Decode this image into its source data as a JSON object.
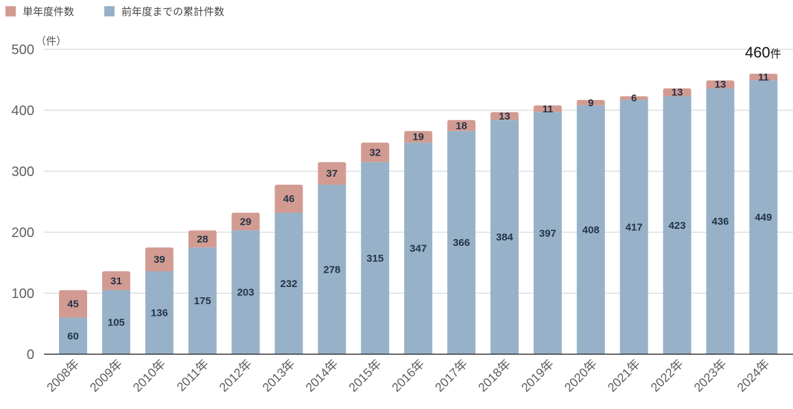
{
  "chart_data": {
    "type": "bar",
    "stacked": true,
    "unit_label": "（件）",
    "legend_position": "top-left",
    "grid": true,
    "ylim": [
      0,
      500
    ],
    "yticks": [
      "0",
      "100",
      "200",
      "300",
      "400",
      "500"
    ],
    "categories": [
      "2008年",
      "2009年",
      "2010年",
      "2011年",
      "2012年",
      "2013年",
      "2014年",
      "2015年",
      "2016年",
      "2017年",
      "2018年",
      "2019年",
      "2020年",
      "2021年",
      "2022年",
      "2023年",
      "2024年"
    ],
    "series": [
      {
        "name": "前年度までの累計件数",
        "color": "#97b1c8",
        "values": [
          60,
          105,
          136,
          175,
          203,
          232,
          278,
          315,
          347,
          366,
          384,
          397,
          408,
          417,
          423,
          436,
          449
        ]
      },
      {
        "name": "単年度件数",
        "color": "#d29b92",
        "values": [
          45,
          31,
          39,
          28,
          29,
          46,
          37,
          32,
          19,
          18,
          13,
          11,
          9,
          6,
          13,
          13,
          11
        ]
      }
    ],
    "legend": [
      "単年度件数",
      "前年度までの累計件数"
    ],
    "annotation": {
      "value": "460",
      "unit": "件"
    }
  }
}
